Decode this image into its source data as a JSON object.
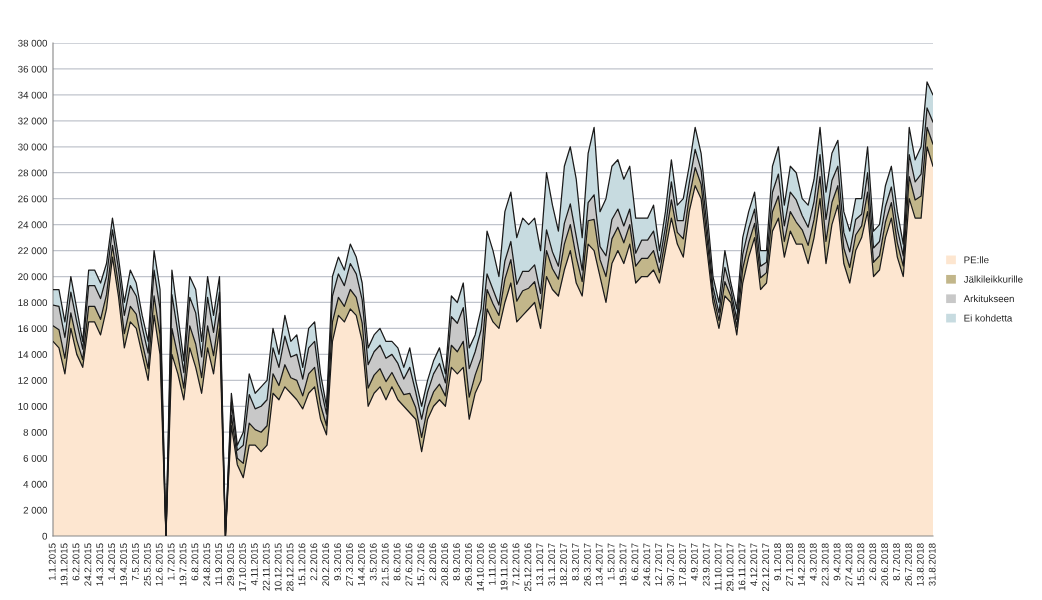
{
  "chart_data": {
    "type": "area",
    "stacked": true,
    "categories": [
      "1.1.2015",
      null,
      "19.1.2015",
      null,
      "6.2.2015",
      null,
      "24.2.2015",
      null,
      "14.3.2015",
      null,
      "1.4.2015",
      null,
      "19.4.2015",
      null,
      "7.5.2015",
      null,
      "25.5.2015",
      null,
      "12.6.2015",
      null,
      "1.7.2015",
      null,
      "19.7.2015",
      null,
      "6.8.2015",
      null,
      "24.8.2015",
      null,
      "11.9.2015",
      null,
      "29.9.2015",
      null,
      "17.10.2015",
      null,
      "4.11.2015",
      null,
      "22.11.2015",
      null,
      "10.12.2015",
      null,
      "28.12.2015",
      null,
      "15.1.2016",
      null,
      "2.2.2016",
      null,
      "20.2.2016",
      null,
      "9.3.2016",
      null,
      "27.3.2016",
      null,
      "14.4.2016",
      null,
      "3.5.2016",
      null,
      "21.5.2016",
      null,
      "8.6.2016",
      null,
      "27.6.2016",
      null,
      "15.7.2016",
      null,
      "2.8.2016",
      null,
      "20.8.2016",
      null,
      "8.9.2016",
      null,
      "26.9.2016",
      null,
      "14.10.2016",
      null,
      "1.11.2016",
      null,
      "19.11.2016",
      null,
      "7.12.2016",
      null,
      "25.12.2016",
      null,
      "13.1.2017",
      null,
      "31.1.2017",
      null,
      "18.2.2017",
      null,
      "8.3.2017",
      null,
      "26.3.2017",
      null,
      "13.4.2017",
      null,
      "1.5.2017",
      null,
      "19.5.2017",
      null,
      "6.6.2017",
      null,
      "24.6.2017",
      null,
      "12.7.2017",
      null,
      "30.7.2017",
      null,
      "17.8.2017",
      null,
      "4.9.2017",
      null,
      "23.9.2017",
      null,
      "11.10.2017",
      null,
      "29.10.2017",
      null,
      "16.11.2017",
      null,
      "4.12.2017",
      null,
      "22.12.2017",
      null,
      "9.1.2018",
      null,
      "27.1.2018",
      null,
      "14.2.2018",
      null,
      "4.3.2018",
      null,
      "22.3.2018",
      null,
      "9.4.2018",
      null,
      "27.4.2018",
      null,
      "15.5.2018",
      null,
      "2.6.2018",
      null,
      "20.6.2018",
      null,
      "8.7.2018",
      null,
      "26.7.2018",
      null,
      "13.8.2018",
      null,
      "31.8.2018"
    ],
    "series": [
      {
        "name": "PE:lle",
        "color": "#fde6d0",
        "values": [
          15000,
          14500,
          12500,
          16000,
          14000,
          13000,
          16500,
          16500,
          15500,
          17500,
          21500,
          18500,
          14500,
          16500,
          16000,
          14000,
          12000,
          17000,
          14000,
          0,
          14000,
          12500,
          10500,
          14500,
          13000,
          11000,
          14500,
          12500,
          16000,
          0,
          8500,
          5500,
          4500,
          7000,
          7000,
          6500,
          7000,
          11000,
          10500,
          11500,
          11000,
          10500,
          9800,
          11000,
          11500,
          9000,
          7800,
          15000,
          17000,
          16500,
          17500,
          17000,
          15000,
          10000,
          11000,
          11500,
          10500,
          11500,
          10500,
          10000,
          9500,
          9000,
          6500,
          9000,
          10000,
          10500,
          10000,
          13000,
          12500,
          13000,
          9000,
          11000,
          12000,
          17500,
          16500,
          16000,
          18000,
          19500,
          16500,
          17000,
          17500,
          18000,
          16000,
          20000,
          19000,
          18500,
          20500,
          22000,
          19500,
          18500,
          22500,
          22000,
          20000,
          18000,
          21000,
          22000,
          21000,
          22500,
          19500,
          20000,
          20000,
          20500,
          19500,
          22000,
          24500,
          22500,
          21500,
          25000,
          27000,
          26000,
          22000,
          18000,
          16000,
          18500,
          18000,
          15500,
          19500,
          21500,
          23000,
          19000,
          19500,
          23500,
          24500,
          21500,
          23500,
          22500,
          22500,
          21000,
          23000,
          26000,
          21000,
          24000,
          25500,
          21000,
          19500,
          22000,
          23000,
          25000,
          20000,
          20500,
          23000,
          24500,
          21500,
          20000,
          26000,
          24500,
          24500,
          30000,
          28500
        ]
      },
      {
        "name": "Jälkileikkurille",
        "color": "#c2b68a",
        "values": [
          1200,
          1400,
          1200,
          1200,
          1100,
          600,
          1200,
          1200,
          1200,
          1100,
          900,
          900,
          1100,
          1200,
          1100,
          900,
          900,
          1500,
          1500,
          0,
          2000,
          1400,
          900,
          1700,
          1800,
          1200,
          1700,
          1400,
          1200,
          0,
          800,
          500,
          1100,
          1700,
          1200,
          1500,
          1500,
          1500,
          1100,
          1700,
          1200,
          1500,
          1000,
          1500,
          1500,
          1100,
          700,
          1500,
          1400,
          1200,
          1500,
          1400,
          1400,
          1400,
          1400,
          1400,
          1400,
          1100,
          1200,
          900,
          1500,
          900,
          1100,
          900,
          1100,
          1200,
          800,
          1700,
          1700,
          2000,
          1700,
          1400,
          1700,
          1500,
          1400,
          1000,
          1800,
          1800,
          1600,
          1900,
          1600,
          1600,
          1500,
          2000,
          1600,
          1300,
          2000,
          2000,
          2000,
          1100,
          1800,
          2400,
          1300,
          2000,
          1900,
          1800,
          1600,
          1500,
          1300,
          1400,
          1400,
          1500,
          800,
          900,
          1400,
          900,
          1400,
          1100,
          1400,
          1100,
          900,
          600,
          600,
          1100,
          500,
          600,
          1100,
          1100,
          1100,
          900,
          800,
          1500,
          1700,
          1200,
          1500,
          1700,
          1100,
          1400,
          1400,
          1700,
          1700,
          1700,
          1500,
          1200,
          1200,
          1200,
          900,
          1500,
          1100,
          1100,
          1200,
          1200,
          1100,
          800,
          1700,
          1400,
          1700,
          1500,
          1700
        ]
      },
      {
        "name": "Arkitukseen",
        "color": "#c8c8c8",
        "values": [
          1600,
          1800,
          1600,
          1600,
          1400,
          800,
          1600,
          1600,
          1600,
          1400,
          1200,
          1200,
          1400,
          1600,
          1400,
          1200,
          1200,
          2000,
          2000,
          0,
          2600,
          1800,
          1200,
          2200,
          2400,
          1600,
          2200,
          1800,
          1600,
          0,
          1000,
          600,
          1400,
          2200,
          1600,
          2000,
          2000,
          2000,
          1400,
          2200,
          1600,
          2000,
          1300,
          2000,
          2000,
          1400,
          900,
          2000,
          1800,
          1600,
          2000,
          1800,
          1800,
          1800,
          1800,
          1800,
          1800,
          1400,
          1600,
          1200,
          2000,
          1200,
          1400,
          1200,
          1400,
          1600,
          1000,
          2200,
          2200,
          2600,
          2200,
          1800,
          2200,
          1200,
          1100,
          800,
          1400,
          1400,
          1300,
          1500,
          1300,
          1300,
          1200,
          1600,
          1300,
          1000,
          1600,
          1600,
          1600,
          900,
          1400,
          1900,
          1000,
          1600,
          1500,
          1400,
          1300,
          1200,
          1000,
          1400,
          1400,
          1500,
          800,
          900,
          1400,
          900,
          1400,
          1100,
          1400,
          1100,
          900,
          600,
          600,
          1100,
          500,
          600,
          1100,
          1100,
          1100,
          900,
          800,
          1500,
          1700,
          1200,
          1500,
          1700,
          1100,
          1400,
          1400,
          1700,
          1700,
          1700,
          1500,
          1200,
          1200,
          1200,
          900,
          1500,
          1100,
          1100,
          1200,
          1200,
          1100,
          800,
          1700,
          1400,
          1700,
          1500,
          1700
        ]
      },
      {
        "name": "Ei kohdetta",
        "color": "#c7dbe0",
        "values": [
          1200,
          1300,
          1200,
          1200,
          1000,
          600,
          1200,
          1200,
          1200,
          1000,
          900,
          900,
          1000,
          1200,
          1000,
          900,
          900,
          1500,
          1500,
          0,
          1900,
          1300,
          900,
          1600,
          1800,
          1200,
          1600,
          1300,
          1200,
          0,
          700,
          400,
          1000,
          1600,
          1200,
          1500,
          1500,
          1500,
          1000,
          1600,
          1200,
          1500,
          900,
          1500,
          1500,
          1000,
          600,
          1500,
          1300,
          1200,
          1500,
          1300,
          1300,
          1300,
          1300,
          1300,
          1300,
          1000,
          1200,
          900,
          1500,
          900,
          1000,
          900,
          1000,
          1200,
          700,
          1600,
          1600,
          1900,
          1600,
          1300,
          1600,
          3300,
          3000,
          2200,
          3800,
          3800,
          3600,
          4100,
          3600,
          3600,
          3300,
          4400,
          3600,
          2700,
          4400,
          4400,
          4400,
          2500,
          3800,
          5200,
          2700,
          4400,
          4100,
          3800,
          3600,
          3300,
          2700,
          1700,
          1700,
          2000,
          900,
          1200,
          1700,
          1200,
          1700,
          1300,
          1700,
          1300,
          1200,
          800,
          800,
          1300,
          500,
          800,
          1300,
          1300,
          1300,
          1200,
          900,
          2000,
          2100,
          1600,
          2000,
          2100,
          1300,
          1700,
          1700,
          2100,
          2100,
          2100,
          2000,
          1600,
          1600,
          1600,
          1200,
          2000,
          1300,
          1300,
          1600,
          1600,
          1300,
          900,
          2100,
          1700,
          2100,
          2000,
          2100
        ]
      }
    ],
    "ylim": [
      0,
      38000
    ],
    "yticks": [
      0,
      {
        "value": 2000,
        "label": "2 000"
      },
      {
        "value": 4000,
        "label": "4 000"
      },
      {
        "value": 6000,
        "label": "6 000"
      },
      {
        "value": 8000,
        "label": "8 000"
      },
      {
        "value": 10000,
        "label": "10 000"
      },
      {
        "value": 12000,
        "label": "12 000"
      },
      {
        "value": 14000,
        "label": "14 000"
      },
      {
        "value": 16000,
        "label": "16 000"
      },
      {
        "value": 18000,
        "label": "18 000"
      },
      {
        "value": 20000,
        "label": "20 000"
      },
      {
        "value": 22000,
        "label": "22 000"
      },
      {
        "value": 24000,
        "label": "24 000"
      },
      {
        "value": 26000,
        "label": "26 000"
      },
      {
        "value": 28000,
        "label": "28 000"
      },
      {
        "value": 30000,
        "label": "30 000"
      },
      {
        "value": 32000,
        "label": "32 000"
      },
      {
        "value": 34000,
        "label": "34 000"
      },
      {
        "value": 36000,
        "label": "36 000"
      },
      {
        "value": 38000,
        "label": "38 000"
      }
    ],
    "grid": "y",
    "legend": "right"
  }
}
